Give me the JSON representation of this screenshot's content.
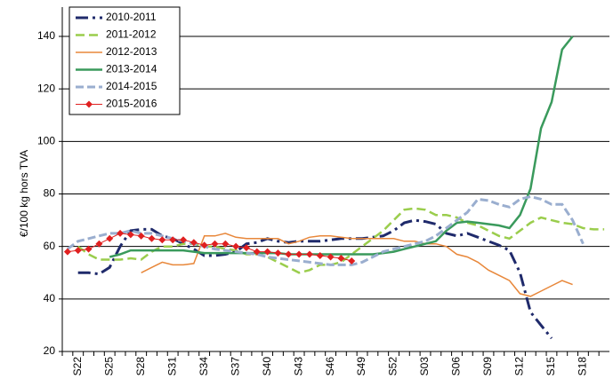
{
  "chart_data": {
    "type": "line",
    "y_label": "€/100 kg hors TVA",
    "categories": [
      null,
      "S22",
      null,
      null,
      "S25",
      null,
      null,
      "S28",
      null,
      null,
      "S31",
      null,
      null,
      "S34",
      null,
      null,
      "S37",
      null,
      null,
      "S40",
      null,
      null,
      "S43",
      null,
      null,
      "S46",
      null,
      null,
      "S49",
      null,
      null,
      "S52",
      null,
      null,
      "S03",
      null,
      null,
      "S06",
      null,
      null,
      "S09",
      null,
      null,
      "S12",
      null,
      null,
      "S15",
      null,
      null,
      "S18",
      null,
      null
    ],
    "ylim": [
      20,
      140
    ],
    "yticks": [
      20,
      40,
      60,
      80,
      100,
      120,
      140
    ],
    "grid": true,
    "legend": "top-left",
    "series": [
      {
        "name": "2010-2011",
        "color": "#1f2a6b",
        "values": [
          null,
          50,
          50,
          49.5,
          52,
          60,
          66,
          66.5,
          66.5,
          64,
          63,
          61,
          59,
          56.5,
          56.5,
          57,
          58,
          61,
          61.5,
          63,
          62,
          61.5,
          62,
          62,
          62,
          62.5,
          63,
          63,
          63,
          63.5,
          64,
          66,
          69,
          70,
          69.5,
          68.5,
          65,
          64,
          65,
          63.5,
          62,
          60.5,
          58.5,
          50,
          35,
          30,
          25,
          null,
          null,
          null,
          null,
          null
        ]
      },
      {
        "name": "2011-2012",
        "color": "#9acd4c",
        "values": [
          null,
          60,
          57,
          55,
          55,
          55,
          55.5,
          55,
          58,
          60,
          60,
          61,
          61,
          60,
          60,
          59,
          58.5,
          57,
          57,
          56,
          54,
          52,
          50,
          51,
          53,
          53,
          54,
          57,
          60,
          63,
          66,
          70,
          74,
          74.5,
          74,
          72,
          72,
          71,
          69,
          68,
          66,
          64,
          63,
          66,
          69,
          71,
          70,
          69,
          68.5,
          67,
          66.5,
          66.5
        ]
      },
      {
        "name": "2012-2013",
        "color": "#e8873a",
        "values": [
          null,
          null,
          null,
          null,
          null,
          null,
          null,
          50,
          52,
          54,
          53,
          53,
          53.5,
          64,
          64,
          65,
          63.5,
          63,
          63,
          63,
          63,
          61,
          62,
          63.5,
          64,
          64,
          63.5,
          63,
          63,
          63,
          63,
          63,
          62,
          62,
          61,
          61,
          60,
          57,
          56,
          54,
          51,
          49,
          47,
          42,
          41,
          43,
          45,
          47,
          45.5,
          null,
          null,
          null
        ]
      },
      {
        "name": "2013-2014",
        "color": "#3a9a5c",
        "values": [
          null,
          null,
          null,
          null,
          56,
          57,
          58.5,
          58.5,
          58.5,
          58.5,
          58.5,
          58.5,
          58,
          57.5,
          57.5,
          57.5,
          57.5,
          57.5,
          57.5,
          57.5,
          57.5,
          57,
          57,
          57,
          57,
          57,
          57,
          57,
          57,
          57,
          57.5,
          58,
          59,
          60,
          61,
          62,
          66,
          69,
          69.5,
          69,
          68.5,
          68,
          67,
          72,
          82,
          105,
          115,
          135,
          140,
          null,
          null,
          null
        ]
      },
      {
        "name": "2014-2015",
        "color": "#9aaecf",
        "values": [
          59,
          62,
          63,
          64,
          65,
          65,
          66,
          65,
          65,
          64,
          63,
          62,
          61,
          60,
          59,
          58.5,
          58,
          57.5,
          57,
          56,
          55.5,
          55,
          54.5,
          54,
          53.5,
          53,
          53,
          53,
          54,
          56,
          58,
          59,
          60,
          61,
          62,
          64,
          67,
          70,
          73,
          78,
          77.5,
          76,
          75,
          78,
          79,
          78,
          76,
          76,
          70,
          61,
          null,
          null
        ]
      },
      {
        "name": "2015-2016",
        "color": "#e02020",
        "marker": "diamond",
        "values": [
          58,
          58.5,
          59,
          61,
          63,
          65,
          64.5,
          64,
          63,
          62.5,
          62.5,
          62.5,
          61.5,
          60.5,
          61,
          61,
          60,
          59.5,
          58,
          58,
          57.5,
          57,
          57,
          57,
          56.5,
          56,
          55.5,
          54.5,
          null,
          null,
          null,
          null,
          null,
          null,
          null,
          null,
          null,
          null,
          null,
          null,
          null,
          null,
          null,
          null,
          null,
          null,
          null,
          null,
          null,
          null,
          null,
          null
        ]
      }
    ]
  }
}
